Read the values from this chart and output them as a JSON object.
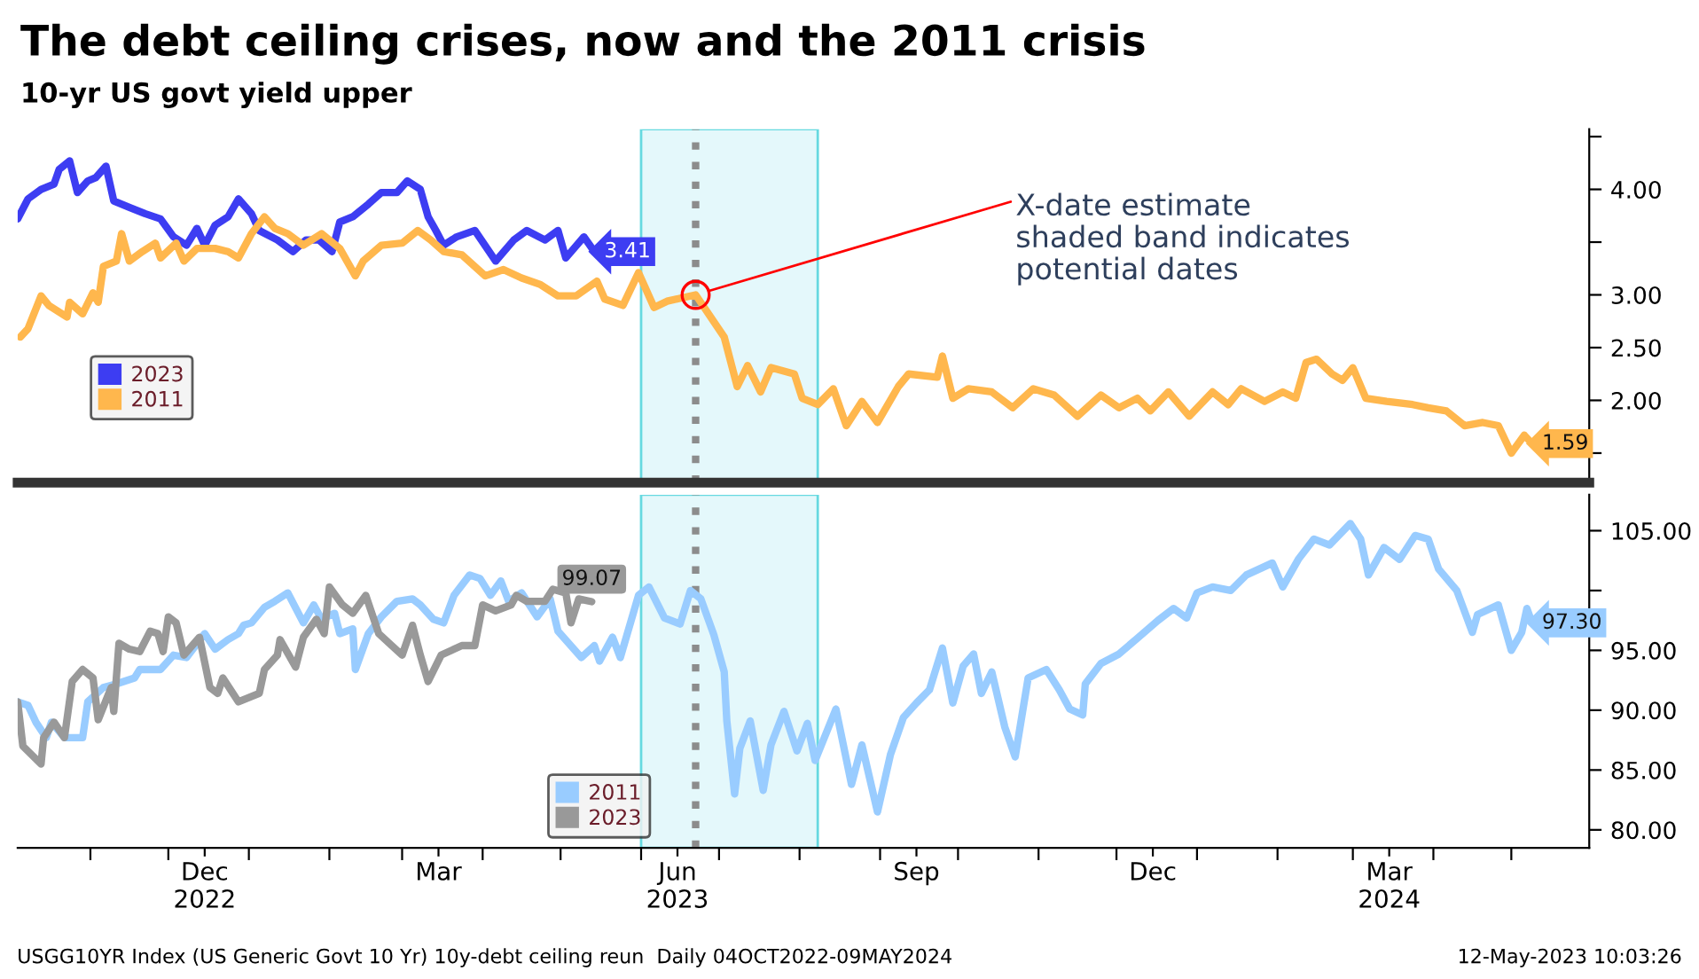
{
  "chart_data": [
    {
      "type": "line",
      "title": "The debt ceiling crises, now and the 2011 crisis",
      "subtitle": "10-yr US govt yield upper",
      "xlim": [
        "2022-10-04",
        "2024-05-31"
      ],
      "ylim": [
        1.22,
        4.57
      ],
      "yticks": [
        {
          "value": 1.5,
          "label": null
        },
        {
          "value": 2.0,
          "label": "2.00"
        },
        {
          "value": 2.5,
          "label": "2.50"
        },
        {
          "value": 3.0,
          "label": "3.00"
        },
        {
          "value": 3.5,
          "label": null
        },
        {
          "value": 4.0,
          "label": "4.00"
        },
        {
          "value": 4.5,
          "label": null
        }
      ],
      "tick_labels": "y",
      "grid": false,
      "legend": "bottom left",
      "marker": "none",
      "line_style": "solid",
      "bands": [
        {
          "axis": "x",
          "from": "2023-06-01",
          "to": "2023-08-08",
          "color": "#e4f8fb"
        }
      ],
      "ref_lines": [
        {
          "axis": "x",
          "value": "2023-06-22",
          "color": "#8c8c8c",
          "line_style": "dotted"
        }
      ],
      "annotations": [
        {
          "text": "X-date estimate\nshaded band indicates\npotential dates",
          "x": "2023-06-22",
          "y": 3.0
        }
      ],
      "series": [
        {
          "name": "2023",
          "color": "#3d3df2",
          "x": [
            "2022-10-04",
            "2022-10-08",
            "2022-10-13",
            "2022-10-18",
            "2022-10-20",
            "2022-10-24",
            "2022-10-27",
            "2022-10-31",
            "2022-11-03",
            "2022-11-07",
            "2022-11-10",
            "2022-11-16",
            "2022-11-22",
            "2022-11-28",
            "2022-12-03",
            "2022-12-08",
            "2022-12-12",
            "2022-12-15",
            "2022-12-19",
            "2022-12-24",
            "2022-12-28",
            "2023-01-02",
            "2023-01-05",
            "2023-01-12",
            "2023-01-18",
            "2023-01-23",
            "2023-01-28",
            "2023-02-02",
            "2023-02-05",
            "2023-02-10",
            "2023-02-16",
            "2023-02-21",
            "2023-02-27",
            "2023-03-03",
            "2023-03-08",
            "2023-03-11",
            "2023-03-14",
            "2023-03-17",
            "2023-03-22",
            "2023-03-29",
            "2023-04-06",
            "2023-04-13",
            "2023-04-18",
            "2023-04-25",
            "2023-04-30",
            "2023-05-03",
            "2023-05-10",
            "2023-05-14"
          ],
          "values": [
            3.72,
            3.91,
            4.0,
            4.05,
            4.19,
            4.27,
            3.97,
            4.08,
            4.11,
            4.22,
            3.89,
            3.83,
            3.77,
            3.72,
            3.55,
            3.47,
            3.63,
            3.47,
            3.66,
            3.74,
            3.91,
            3.77,
            3.61,
            3.52,
            3.41,
            3.52,
            3.52,
            3.41,
            3.69,
            3.74,
            3.86,
            3.97,
            3.97,
            4.08,
            4.0,
            3.74,
            3.61,
            3.47,
            3.55,
            3.61,
            3.32,
            3.52,
            3.61,
            3.52,
            3.61,
            3.35,
            3.55,
            3.41
          ],
          "value_labels": [
            null,
            null,
            null,
            null,
            null,
            null,
            null,
            null,
            null,
            null,
            null,
            null,
            null,
            null,
            null,
            null,
            null,
            null,
            null,
            null,
            null,
            null,
            null,
            null,
            null,
            null,
            null,
            null,
            null,
            null,
            null,
            null,
            null,
            null,
            null,
            null,
            null,
            null,
            null,
            null,
            null,
            null,
            null,
            null,
            null,
            null,
            null,
            "3.41"
          ]
        },
        {
          "name": "2011",
          "color": "#ffb74d",
          "x": [
            "2022-10-05",
            "2022-10-08",
            "2022-10-13",
            "2022-10-16",
            "2022-10-23",
            "2022-10-24",
            "2022-10-29",
            "2022-11-02",
            "2022-11-04",
            "2022-11-06",
            "2022-11-11",
            "2022-11-13",
            "2022-11-16",
            "2022-11-21",
            "2022-11-26",
            "2022-11-28",
            "2022-12-04",
            "2022-12-07",
            "2022-12-12",
            "2022-12-19",
            "2022-12-24",
            "2022-12-28",
            "2023-01-02",
            "2023-01-07",
            "2023-01-11",
            "2023-01-16",
            "2023-01-22",
            "2023-01-29",
            "2023-02-05",
            "2023-02-11",
            "2023-02-14",
            "2023-02-21",
            "2023-03-01",
            "2023-03-07",
            "2023-03-12",
            "2023-03-17",
            "2023-03-24",
            "2023-04-02",
            "2023-04-09",
            "2023-04-16",
            "2023-04-23",
            "2023-04-30",
            "2023-05-07",
            "2023-05-15",
            "2023-05-18",
            "2023-05-25",
            "2023-05-31",
            "2023-06-06",
            "2023-06-11",
            "2023-06-22",
            "2023-07-03",
            "2023-07-08",
            "2023-07-12",
            "2023-07-17",
            "2023-07-21",
            "2023-07-30",
            "2023-08-02",
            "2023-08-08",
            "2023-08-14",
            "2023-08-19",
            "2023-08-25",
            "2023-08-31",
            "2023-09-08",
            "2023-09-12",
            "2023-09-23",
            "2023-09-25",
            "2023-09-29",
            "2023-10-05",
            "2023-10-14",
            "2023-10-22",
            "2023-10-30",
            "2023-11-07",
            "2023-11-16",
            "2023-11-25",
            "2023-12-02",
            "2023-12-09",
            "2023-12-14",
            "2023-12-21",
            "2023-12-29",
            "2024-01-07",
            "2024-01-13",
            "2024-01-18",
            "2024-01-27",
            "2024-02-03",
            "2024-02-08",
            "2024-02-12",
            "2024-02-16",
            "2024-02-22",
            "2024-02-26",
            "2024-03-01",
            "2024-03-06",
            "2024-03-14",
            "2024-03-24",
            "2024-03-30",
            "2024-04-06",
            "2024-04-13",
            "2024-04-20",
            "2024-04-26",
            "2024-05-01",
            "2024-05-06",
            "2024-05-09"
          ],
          "values": [
            2.6,
            2.68,
            2.99,
            2.9,
            2.79,
            2.93,
            2.82,
            3.02,
            2.93,
            3.27,
            3.32,
            3.58,
            3.32,
            3.41,
            3.49,
            3.35,
            3.49,
            3.32,
            3.44,
            3.44,
            3.41,
            3.35,
            3.58,
            3.74,
            3.63,
            3.58,
            3.47,
            3.58,
            3.44,
            3.18,
            3.32,
            3.47,
            3.49,
            3.61,
            3.52,
            3.41,
            3.38,
            3.18,
            3.24,
            3.16,
            3.1,
            2.99,
            2.99,
            3.13,
            2.96,
            2.9,
            3.21,
            2.88,
            2.94,
            3.0,
            2.6,
            2.13,
            2.33,
            2.08,
            2.31,
            2.25,
            2.02,
            1.96,
            2.11,
            1.76,
            1.99,
            1.79,
            2.13,
            2.25,
            2.22,
            2.42,
            2.02,
            2.11,
            2.08,
            1.93,
            2.11,
            2.05,
            1.85,
            2.05,
            1.93,
            2.02,
            1.9,
            2.08,
            1.85,
            2.08,
            1.96,
            2.11,
            1.99,
            2.08,
            2.02,
            2.36,
            2.39,
            2.25,
            2.19,
            2.31,
            2.02,
            1.99,
            1.96,
            1.93,
            1.9,
            1.76,
            1.79,
            1.76,
            1.5,
            1.67,
            1.59
          ],
          "value_labels": [
            null,
            null,
            null,
            null,
            null,
            null,
            null,
            null,
            null,
            null,
            null,
            null,
            null,
            null,
            null,
            null,
            null,
            null,
            null,
            null,
            null,
            null,
            null,
            null,
            null,
            null,
            null,
            null,
            null,
            null,
            null,
            null,
            null,
            null,
            null,
            null,
            null,
            null,
            null,
            null,
            null,
            null,
            null,
            null,
            null,
            null,
            null,
            null,
            null,
            null,
            null,
            null,
            null,
            null,
            null,
            null,
            null,
            null,
            null,
            null,
            null,
            null,
            null,
            null,
            null,
            null,
            null,
            null,
            null,
            null,
            null,
            null,
            null,
            null,
            null,
            null,
            null,
            null,
            null,
            null,
            null,
            null,
            null,
            null,
            null,
            null,
            null,
            null,
            null,
            null,
            null,
            null,
            null,
            null,
            null,
            null,
            null,
            null,
            null,
            null,
            "1.59"
          ]
        }
      ]
    },
    {
      "type": "line",
      "xlim": [
        "2022-10-04",
        "2024-05-31"
      ],
      "ylim": [
        78.5,
        108
      ],
      "xticks": [
        {
          "value": "2022-11-01",
          "label": null
        },
        {
          "value": "2022-12-01",
          "label": null
        },
        {
          "value": "2022-12-15",
          "label": "Dec\n2022"
        },
        {
          "value": "2023-01-01",
          "label": null
        },
        {
          "value": "2023-02-01",
          "label": null
        },
        {
          "value": "2023-03-01",
          "label": null
        },
        {
          "value": "2023-03-15",
          "label": "Mar"
        },
        {
          "value": "2023-04-01",
          "label": null
        },
        {
          "value": "2023-05-01",
          "label": null
        },
        {
          "value": "2023-06-01",
          "label": null
        },
        {
          "value": "2023-06-15",
          "label": "Jun\n2023"
        },
        {
          "value": "2023-07-01",
          "label": null
        },
        {
          "value": "2023-08-01",
          "label": null
        },
        {
          "value": "2023-09-01",
          "label": null
        },
        {
          "value": "2023-09-15",
          "label": "Sep"
        },
        {
          "value": "2023-10-01",
          "label": null
        },
        {
          "value": "2023-11-01",
          "label": null
        },
        {
          "value": "2023-12-01",
          "label": null
        },
        {
          "value": "2023-12-15",
          "label": "Dec"
        },
        {
          "value": "2024-01-01",
          "label": null
        },
        {
          "value": "2024-02-01",
          "label": null
        },
        {
          "value": "2024-03-01",
          "label": null
        },
        {
          "value": "2024-03-15",
          "label": "Mar\n2024"
        },
        {
          "value": "2024-04-01",
          "label": null
        },
        {
          "value": "2024-05-01",
          "label": null
        }
      ],
      "yticks": [
        {
          "value": 80,
          "label": "80.00"
        },
        {
          "value": 85,
          "label": "85.00"
        },
        {
          "value": 90,
          "label": "90.00"
        },
        {
          "value": 95,
          "label": "95.00"
        },
        {
          "value": 100,
          "label": null
        },
        {
          "value": 105,
          "label": "105.00"
        }
      ],
      "grid": false,
      "legend": "bottom",
      "marker": "none",
      "line_style": "solid",
      "bands": [
        {
          "axis": "x",
          "from": "2023-06-01",
          "to": "2023-08-08",
          "color": "#e4f8fb"
        }
      ],
      "ref_lines": [
        {
          "axis": "x",
          "value": "2023-06-22",
          "color": "#8c8c8c",
          "line_style": "dotted"
        }
      ],
      "annotations": [
        "USGG10YR Index (US Generic Govt 10 Yr) 10y-debt ceiling reun  Daily 04OCT2022-09MAY2024",
        "12-May-2023 10:03:26"
      ],
      "series": [
        {
          "name": "2011",
          "color": "#99ccff",
          "x": [
            "2022-10-04",
            "2022-10-08",
            "2022-10-11",
            "2022-10-15",
            "2022-10-17",
            "2022-10-22",
            "2022-10-29",
            "2022-10-31",
            "2022-11-06",
            "2022-11-11",
            "2022-11-18",
            "2022-11-20",
            "2022-11-28",
            "2022-12-03",
            "2022-12-08",
            "2022-12-15",
            "2022-12-19",
            "2022-12-24",
            "2022-12-28",
            "2022-12-30",
            "2023-01-02",
            "2023-01-07",
            "2023-01-11",
            "2023-01-16",
            "2023-01-22",
            "2023-01-26",
            "2023-01-29",
            "2023-02-03",
            "2023-02-05",
            "2023-02-10",
            "2023-02-11",
            "2023-02-16",
            "2023-02-21",
            "2023-02-27",
            "2023-03-05",
            "2023-03-08",
            "2023-03-13",
            "2023-03-17",
            "2023-03-21",
            "2023-03-27",
            "2023-03-31",
            "2023-04-04",
            "2023-04-08",
            "2023-04-11",
            "2023-04-16",
            "2023-04-22",
            "2023-04-27",
            "2023-04-30",
            "2023-05-09",
            "2023-05-14",
            "2023-05-16",
            "2023-05-21",
            "2023-05-24",
            "2023-05-31",
            "2023-06-04",
            "2023-06-10",
            "2023-06-16",
            "2023-06-20",
            "2023-06-24",
            "2023-06-29",
            "2023-07-03",
            "2023-07-04",
            "2023-07-07",
            "2023-07-09",
            "2023-07-13",
            "2023-07-18",
            "2023-07-21",
            "2023-07-26",
            "2023-07-31",
            "2023-08-04",
            "2023-08-07",
            "2023-08-15",
            "2023-08-21",
            "2023-08-25",
            "2023-08-31",
            "2023-09-05",
            "2023-09-10",
            "2023-09-15",
            "2023-09-20",
            "2023-09-25",
            "2023-09-29",
            "2023-10-03",
            "2023-10-07",
            "2023-10-10",
            "2023-10-14",
            "2023-10-19",
            "2023-10-23",
            "2023-10-28",
            "2023-11-04",
            "2023-11-09",
            "2023-11-13",
            "2023-11-18",
            "2023-11-19",
            "2023-11-25",
            "2023-12-02",
            "2023-12-09",
            "2023-12-17",
            "2023-12-23",
            "2023-12-28",
            "2024-01-01",
            "2024-01-07",
            "2024-01-14",
            "2024-01-20",
            "2024-01-30",
            "2024-02-03",
            "2024-02-09",
            "2024-02-15",
            "2024-02-21",
            "2024-02-29",
            "2024-03-04",
            "2024-03-07",
            "2024-03-13",
            "2024-03-19",
            "2024-03-25",
            "2024-03-30",
            "2024-04-03",
            "2024-04-10",
            "2024-04-16",
            "2024-04-18",
            "2024-04-26",
            "2024-05-01",
            "2024-05-05",
            "2024-05-07",
            "2024-05-09"
          ],
          "values": [
            90.7,
            90.4,
            89.0,
            87.7,
            89.0,
            87.7,
            87.7,
            90.7,
            91.9,
            92.2,
            92.7,
            93.4,
            93.4,
            94.6,
            94.4,
            96.4,
            95.1,
            95.9,
            96.4,
            97.1,
            97.3,
            98.6,
            99.1,
            99.8,
            97.3,
            98.8,
            97.6,
            98.1,
            96.4,
            96.8,
            93.4,
            96.4,
            97.8,
            99.1,
            99.3,
            98.8,
            97.6,
            97.3,
            99.6,
            101.3,
            101.0,
            99.6,
            100.8,
            99.1,
            99.8,
            97.8,
            99.3,
            96.6,
            94.4,
            95.4,
            94.1,
            96.1,
            94.4,
            99.6,
            100.3,
            97.7,
            97.2,
            100.0,
            99.3,
            96.3,
            93.2,
            89.1,
            83.0,
            86.8,
            89.1,
            83.3,
            87.1,
            89.9,
            86.6,
            88.9,
            85.8,
            90.1,
            83.8,
            87.1,
            81.5,
            86.3,
            89.4,
            90.6,
            91.7,
            95.2,
            90.6,
            93.7,
            94.7,
            91.4,
            93.2,
            88.6,
            86.1,
            92.7,
            93.4,
            91.7,
            90.1,
            89.6,
            92.2,
            93.9,
            94.7,
            96.0,
            97.5,
            98.5,
            97.7,
            99.8,
            100.3,
            100.0,
            101.3,
            102.3,
            100.3,
            102.6,
            104.3,
            103.8,
            105.6,
            104.3,
            101.3,
            103.6,
            102.6,
            104.6,
            104.3,
            101.8,
            100.0,
            96.5,
            98.0,
            98.8,
            95.0,
            96.5,
            98.5,
            97.3
          ],
          "value_labels": [
            null,
            null,
            null,
            null,
            null,
            null,
            null,
            null,
            null,
            null,
            null,
            null,
            null,
            null,
            null,
            null,
            null,
            null,
            null,
            null,
            null,
            null,
            null,
            null,
            null,
            null,
            null,
            null,
            null,
            null,
            null,
            null,
            null,
            null,
            null,
            null,
            null,
            null,
            null,
            null,
            null,
            null,
            null,
            null,
            null,
            null,
            null,
            null,
            null,
            null,
            null,
            null,
            null,
            null,
            null,
            null,
            null,
            null,
            null,
            null,
            null,
            null,
            null,
            null,
            null,
            null,
            null,
            null,
            null,
            null,
            null,
            null,
            null,
            null,
            null,
            null,
            null,
            null,
            null,
            null,
            null,
            null,
            null,
            null,
            null,
            null,
            null,
            null,
            null,
            null,
            null,
            null,
            null,
            null,
            null,
            null,
            null,
            null,
            null,
            null,
            null,
            null,
            null,
            null,
            null,
            null,
            null,
            null,
            null,
            null,
            null,
            null,
            null,
            null,
            null,
            null,
            null,
            null,
            null,
            null,
            null,
            null,
            null,
            "97.30"
          ]
        },
        {
          "name": "2023",
          "color": "#999999",
          "x": [
            "2022-10-04",
            "2022-10-06",
            "2022-10-13",
            "2022-10-14",
            "2022-10-18",
            "2022-10-22",
            "2022-10-25",
            "2022-10-29",
            "2022-11-02",
            "2022-11-04",
            "2022-11-09",
            "2022-11-10",
            "2022-11-12",
            "2022-11-16",
            "2022-11-20",
            "2022-11-24",
            "2022-11-27",
            "2022-11-29",
            "2022-12-01",
            "2022-12-04",
            "2022-12-07",
            "2022-12-13",
            "2022-12-17",
            "2022-12-20",
            "2022-12-22",
            "2022-12-28",
            "2023-01-05",
            "2023-01-07",
            "2023-01-12",
            "2023-01-13",
            "2023-01-19",
            "2023-01-22",
            "2023-01-27",
            "2023-01-30",
            "2023-02-01",
            "2023-02-06",
            "2023-02-10",
            "2023-02-15",
            "2023-02-20",
            "2023-02-25",
            "2023-03-01",
            "2023-03-05",
            "2023-03-08",
            "2023-03-11",
            "2023-03-16",
            "2023-03-21",
            "2023-03-24",
            "2023-03-29",
            "2023-04-01",
            "2023-04-06",
            "2023-04-12",
            "2023-04-14",
            "2023-04-18",
            "2023-04-25",
            "2023-04-28",
            "2023-05-03",
            "2023-05-05",
            "2023-05-08",
            "2023-05-13"
          ],
          "values": [
            90.7,
            87.0,
            85.5,
            87.7,
            89.0,
            87.7,
            92.4,
            93.4,
            92.7,
            89.2,
            91.9,
            89.9,
            95.6,
            95.1,
            94.9,
            96.6,
            96.4,
            94.9,
            97.8,
            97.3,
            94.6,
            96.1,
            91.9,
            91.4,
            92.7,
            90.7,
            91.4,
            93.4,
            94.6,
            95.9,
            93.6,
            96.1,
            97.6,
            96.4,
            100.3,
            98.8,
            98.1,
            99.6,
            96.4,
            95.4,
            94.6,
            97.1,
            94.6,
            92.4,
            94.6,
            95.1,
            95.4,
            95.4,
            98.8,
            98.3,
            98.8,
            99.6,
            99.1,
            99.1,
            100.1,
            99.8,
            97.3,
            99.3,
            99.07
          ],
          "value_labels": [
            null,
            null,
            null,
            null,
            null,
            null,
            null,
            null,
            null,
            null,
            null,
            null,
            null,
            null,
            null,
            null,
            null,
            null,
            null,
            null,
            null,
            null,
            null,
            null,
            null,
            null,
            null,
            null,
            null,
            null,
            null,
            null,
            null,
            null,
            null,
            null,
            null,
            null,
            null,
            null,
            null,
            null,
            null,
            null,
            null,
            null,
            null,
            null,
            null,
            null,
            null,
            null,
            null,
            null,
            null,
            null,
            null,
            null,
            "99.07"
          ]
        }
      ]
    }
  ]
}
